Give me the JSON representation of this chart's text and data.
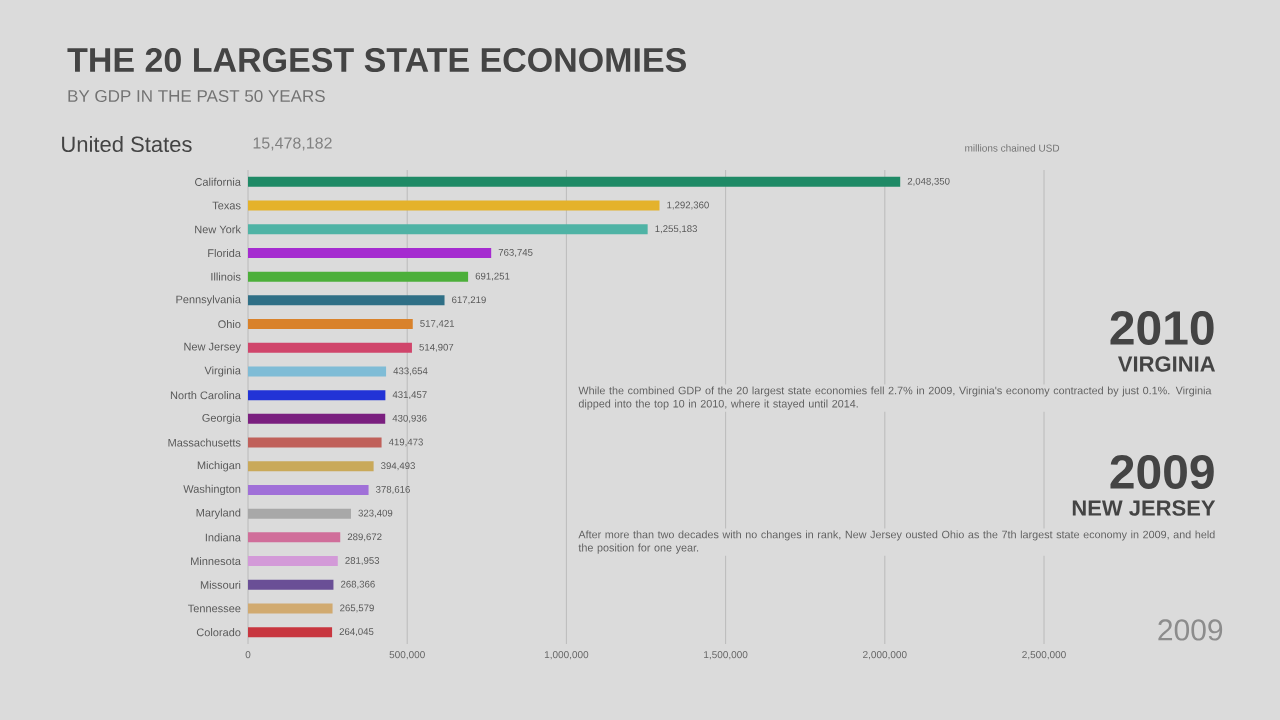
{
  "chart_data": {
    "type": "bar",
    "orientation": "horizontal",
    "title": "THE 20 LARGEST STATE ECONOMIES",
    "subtitle": "BY GDP IN THE PAST 50 YEARS",
    "categories": [
      "California",
      "Texas",
      "New York",
      "Florida",
      "Illinois",
      "Pennsylvania",
      "Ohio",
      "New Jersey",
      "Virginia",
      "North Carolina",
      "Georgia",
      "Massachusetts",
      "Michigan",
      "Washington",
      "Maryland",
      "Indiana",
      "Minnesota",
      "Missouri",
      "Tennessee",
      "Colorado"
    ],
    "values": [
      2048350,
      1292360,
      1255183,
      763745,
      691251,
      617219,
      517421,
      514907,
      433654,
      431457,
      430936,
      419473,
      394493,
      378616,
      323409,
      289672,
      281953,
      268366,
      265579,
      264045
    ],
    "colors": [
      "#1f8a66",
      "#e4b22b",
      "#4fb3a5",
      "#a52bd0",
      "#4caf3a",
      "#2f6f86",
      "#d9822b",
      "#d0456b",
      "#7fbcd6",
      "#2233d6",
      "#7a1f7f",
      "#c0605a",
      "#c9a95a",
      "#a070d8",
      "#a8a8a8",
      "#d06e9a",
      "#d39ad8",
      "#6a4f96",
      "#d1aa70",
      "#c8363f"
    ],
    "value_labels": [
      "2,048,350",
      "1,292,360",
      "1,255,183",
      "763,745",
      "691,251",
      "617,219",
      "517,421",
      "514,907",
      "433,654",
      "431,457",
      "430,936",
      "419,473",
      "394,493",
      "378,616",
      "323,409",
      "289,672",
      "281,953",
      "268,366",
      "265,579",
      "264,045"
    ],
    "xlim": [
      0,
      2500000
    ],
    "xticks": [
      0,
      {
        "value": 500000,
        "label": "500,000"
      },
      {
        "value": 1000000,
        "label": "1,000,000"
      },
      {
        "value": 1500000,
        "label": "1,500,000"
      },
      {
        "value": 2000000,
        "label": "2,000,000"
      },
      {
        "value": 2500000,
        "label": "2,500,000"
      }
    ],
    "grid": "x",
    "annotations": [
      "United States",
      "15,478,182",
      "millions chained USD",
      "2010",
      "VIRGINIA",
      "While the combined GDP of the 20 largest state economies fell 2.7% in 2009, Virginia's economy contracted by just 0.1%. Virginia dipped into the top 10 in 2010, where it stayed until 2014.",
      "2009",
      "NEW JERSEY",
      "After more than two decades with no changes in rank, New Jersey ousted Ohio as the 7th largest state economy in 2009, and held the position for one year.",
      "2009"
    ]
  }
}
